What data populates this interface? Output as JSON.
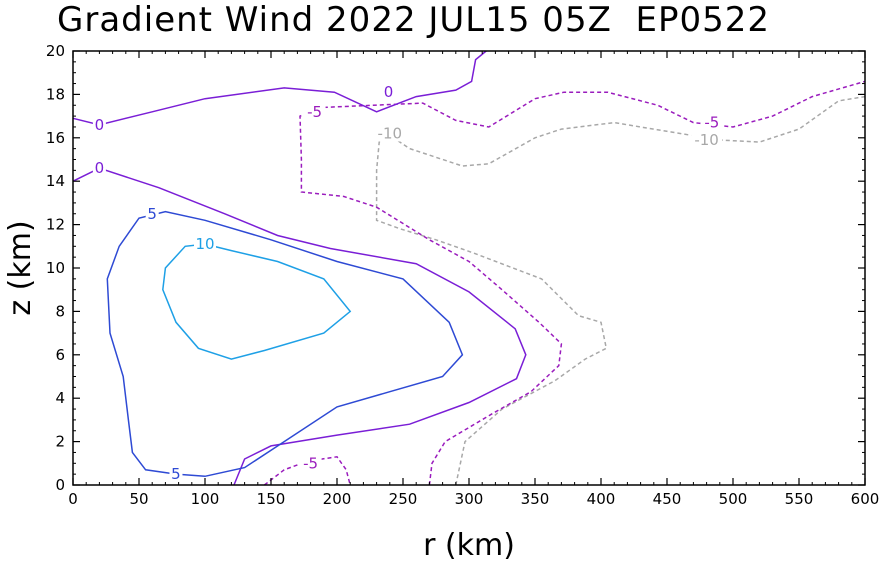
{
  "chart_data": {
    "type": "contour",
    "title": "Gradient Wind 2022 JUL15 05Z  EP0522",
    "xlabel": "r (km)",
    "ylabel": "z (km)",
    "xlim": [
      0,
      600
    ],
    "ylim": [
      0,
      20
    ],
    "xticks": [
      "0",
      "50",
      "100",
      "150",
      "200",
      "250",
      "300",
      "350",
      "400",
      "450",
      "500",
      "550",
      "600"
    ],
    "yticks": [
      "0",
      "2",
      "4",
      "6",
      "8",
      "10",
      "12",
      "14",
      "16",
      "18",
      "20"
    ],
    "xtick_values": [
      0,
      50,
      100,
      150,
      200,
      250,
      300,
      350,
      400,
      450,
      500,
      550,
      600
    ],
    "ytick_values": [
      0,
      2,
      4,
      6,
      8,
      10,
      12,
      14,
      16,
      18,
      20
    ],
    "contours": [
      {
        "level": -10,
        "color": "#a8a8a8",
        "dashed": true,
        "label": "-10",
        "labels_at": [
          [
            240,
            16.2
          ],
          [
            480,
            15.9
          ]
        ],
        "paths": [
          [
            [
              290,
              0
            ],
            [
              297,
              2
            ],
            [
              325,
              3.5
            ],
            [
              365,
              4.8
            ],
            [
              388,
              5.8
            ],
            [
              404,
              6.3
            ],
            [
              400,
              7.5
            ],
            [
              383,
              7.8
            ],
            [
              355,
              9.5
            ],
            [
              303,
              10.7
            ],
            [
              275,
              11.3
            ],
            [
              248,
              11.8
            ],
            [
              230,
              12.2
            ],
            [
              230,
              14.5
            ],
            [
              232,
              15.8
            ],
            [
              238,
              16.2
            ],
            [
              255,
              15.5
            ],
            [
              295,
              14.7
            ],
            [
              315,
              14.8
            ],
            [
              350,
              16.0
            ],
            [
              370,
              16.4
            ],
            [
              410,
              16.7
            ],
            [
              460,
              16.2
            ],
            [
              490,
              15.9
            ],
            [
              520,
              15.8
            ],
            [
              550,
              16.4
            ],
            [
              580,
              17.7
            ],
            [
              600,
              17.9
            ]
          ]
        ]
      },
      {
        "level": -5,
        "color": "#9a1cbd",
        "dashed": true,
        "label": "-5",
        "labels_at": [
          [
            183,
            17.2
          ],
          [
            484,
            16.7
          ],
          [
            180,
            1.0
          ]
        ],
        "paths": [
          [
            [
              270,
              0
            ],
            [
              272,
              1.0
            ],
            [
              282,
              2.0
            ],
            [
              318,
              3.3
            ],
            [
              347,
              4.3
            ],
            [
              368,
              5.5
            ],
            [
              370,
              6.5
            ],
            [
              353,
              7.5
            ],
            [
              325,
              9.0
            ],
            [
              300,
              10.3
            ],
            [
              270,
              11.3
            ],
            [
              230,
              12.8
            ],
            [
              205,
              13.3
            ],
            [
              173,
              13.5
            ],
            [
              173,
              15.0
            ],
            [
              172,
              17.0
            ],
            [
              190,
              17.4
            ],
            [
              265,
              17.6
            ],
            [
              290,
              16.8
            ],
            [
              315,
              16.5
            ],
            [
              350,
              17.8
            ],
            [
              372,
              18.1
            ],
            [
              405,
              18.1
            ],
            [
              443,
              17.5
            ],
            [
              470,
              16.7
            ],
            [
              500,
              16.5
            ],
            [
              530,
              17.0
            ],
            [
              560,
              17.9
            ],
            [
              600,
              18.6
            ]
          ],
          [
            [
              145,
              0
            ],
            [
              160,
              0.7
            ],
            [
              178,
              1.1
            ],
            [
              200,
              1.3
            ],
            [
              207,
              0.7
            ],
            [
              210,
              0
            ]
          ]
        ]
      },
      {
        "level": 0,
        "color": "#7a1ed6",
        "dashed": false,
        "label": "0",
        "labels_at": [
          [
            20,
            16.6
          ],
          [
            20,
            14.6
          ],
          [
            239,
            18.1
          ]
        ],
        "paths": [
          [
            [
              0,
              16.9
            ],
            [
              20,
              16.6
            ],
            [
              60,
              17.2
            ],
            [
              100,
              17.8
            ],
            [
              160,
              18.3
            ],
            [
              198,
              18.1
            ],
            [
              230,
              17.2
            ],
            [
              260,
              17.9
            ],
            [
              290,
              18.2
            ],
            [
              302,
              18.6
            ],
            [
              305,
              19.6
            ],
            [
              313,
              20
            ]
          ],
          [
            [
              0,
              14.0
            ],
            [
              20,
              14.6
            ],
            [
              65,
              13.7
            ],
            [
              115,
              12.5
            ],
            [
              155,
              11.5
            ],
            [
              195,
              10.9
            ],
            [
              260,
              10.2
            ],
            [
              300,
              8.9
            ],
            [
              335,
              7.2
            ],
            [
              343,
              6.0
            ],
            [
              336,
              4.9
            ],
            [
              300,
              3.8
            ],
            [
              255,
              2.8
            ],
            [
              200,
              2.3
            ],
            [
              150,
              1.8
            ],
            [
              130,
              1.2
            ],
            [
              122,
              0
            ]
          ]
        ]
      },
      {
        "level": 5,
        "color": "#2e4ad4",
        "dashed": false,
        "label": "5",
        "labels_at": [
          [
            60,
            12.5
          ],
          [
            78,
            0.5
          ]
        ],
        "paths": [
          [
            [
              78,
              0.5
            ],
            [
              55,
              0.7
            ],
            [
              45,
              1.5
            ],
            [
              42,
              3.0
            ],
            [
              38,
              5.0
            ],
            [
              28,
              7.0
            ],
            [
              26,
              9.5
            ],
            [
              35,
              11.0
            ],
            [
              50,
              12.3
            ],
            [
              70,
              12.6
            ],
            [
              100,
              12.2
            ],
            [
              150,
              11.3
            ],
            [
              200,
              10.3
            ],
            [
              250,
              9.5
            ],
            [
              285,
              7.5
            ],
            [
              295,
              6.0
            ],
            [
              280,
              5.0
            ],
            [
              240,
              4.3
            ],
            [
              200,
              3.6
            ],
            [
              160,
              2.0
            ],
            [
              130,
              0.8
            ],
            [
              100,
              0.4
            ],
            [
              78,
              0.5
            ]
          ]
        ]
      },
      {
        "level": 10,
        "color": "#1ea0e6",
        "dashed": false,
        "label": "10",
        "labels_at": [
          [
            100,
            11.1
          ]
        ],
        "paths": [
          [
            [
              100,
              11.1
            ],
            [
              120,
              10.8
            ],
            [
              155,
              10.3
            ],
            [
              190,
              9.5
            ],
            [
              210,
              8.0
            ],
            [
              190,
              7.0
            ],
            [
              145,
              6.2
            ],
            [
              120,
              5.8
            ],
            [
              95,
              6.3
            ],
            [
              78,
              7.5
            ],
            [
              68,
              9.0
            ],
            [
              70,
              10.0
            ],
            [
              85,
              11.0
            ],
            [
              100,
              11.1
            ]
          ]
        ]
      }
    ]
  }
}
